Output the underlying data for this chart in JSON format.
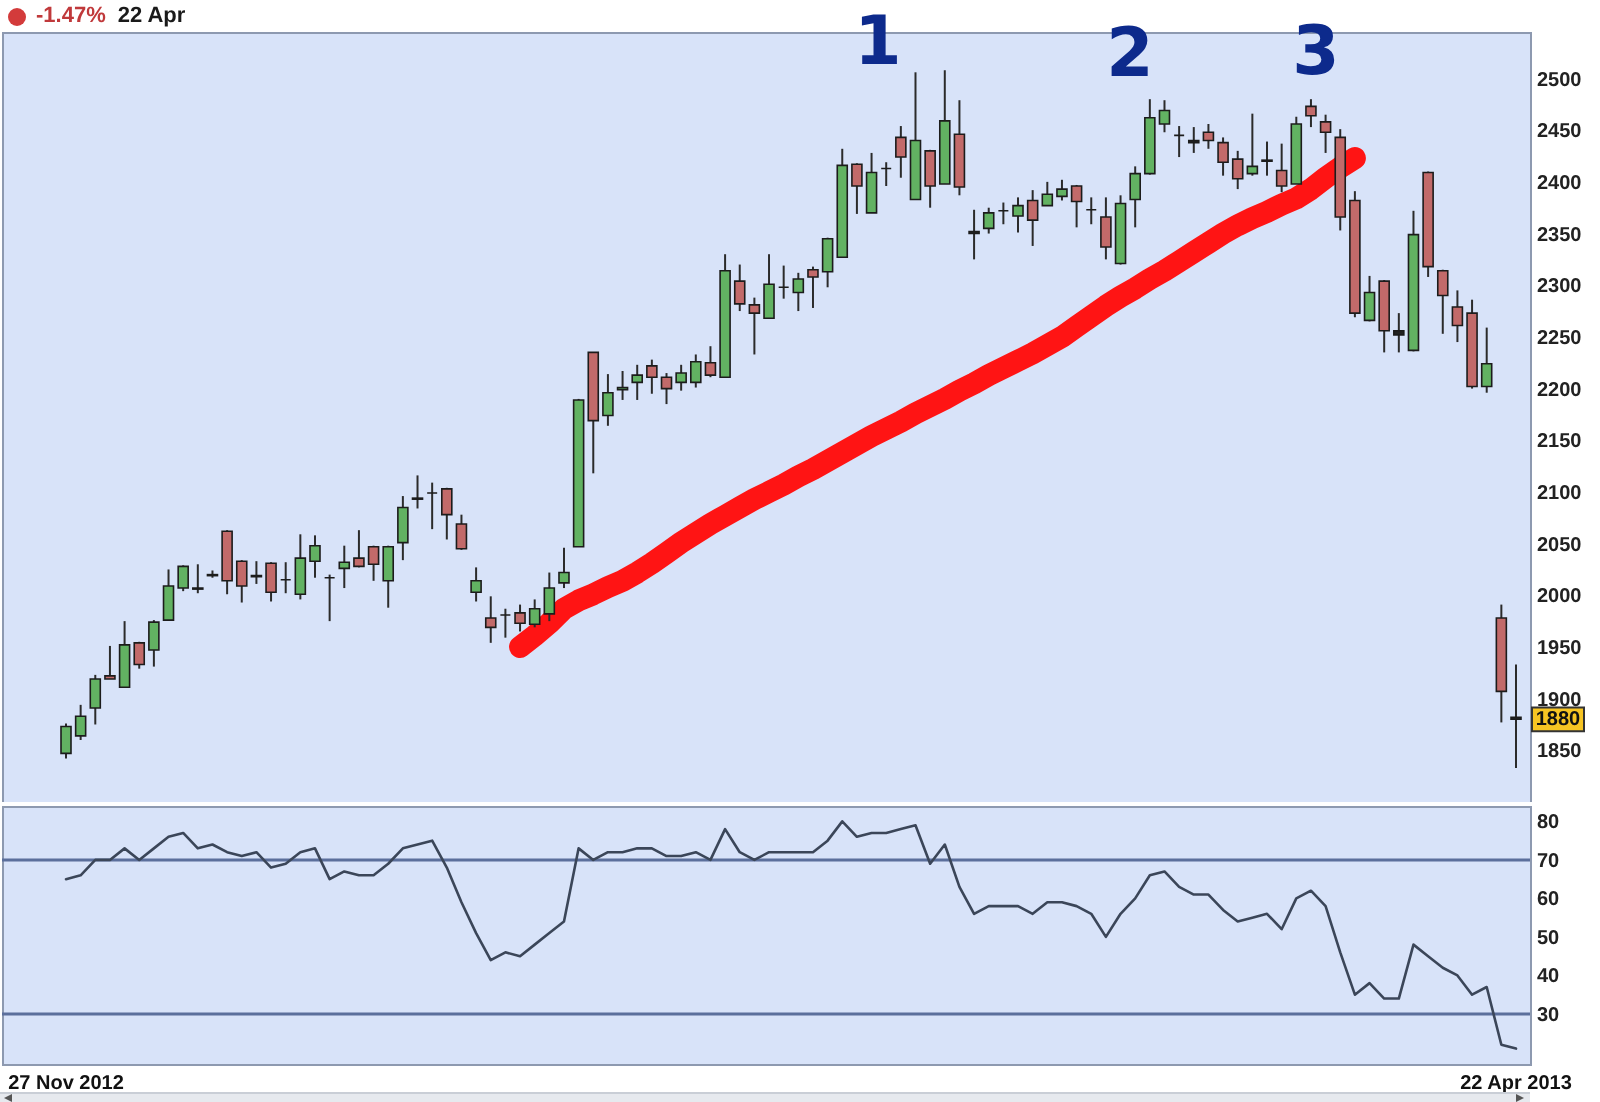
{
  "chart_data": [
    {
      "type": "candlestick",
      "title": "-1.47%",
      "subtitle": "22 Apr",
      "categories": [
        null,
        null,
        null,
        null,
        null,
        null,
        null,
        null,
        null,
        null,
        null,
        null,
        null,
        null,
        null,
        null,
        null,
        null,
        null,
        null,
        null,
        null,
        null,
        null,
        null,
        null,
        null,
        null,
        null,
        null,
        null,
        null,
        null,
        null,
        null,
        null,
        null,
        null,
        null,
        null,
        null,
        null,
        null,
        null,
        null,
        null,
        null,
        null,
        null,
        null,
        null,
        null,
        null,
        null,
        null,
        null,
        null,
        null,
        null,
        null,
        null,
        null,
        null,
        null,
        null,
        null,
        null,
        null,
        null,
        null,
        null,
        null,
        null,
        null,
        null,
        null,
        null,
        null,
        null,
        null,
        null,
        null,
        null,
        null,
        null,
        null,
        null,
        null,
        null,
        null,
        null,
        null,
        null,
        null,
        null,
        null,
        null,
        null,
        null,
        null
      ],
      "ohlc": [
        [
          1847,
          1876,
          1842,
          1873
        ],
        [
          1864,
          1894,
          1860,
          1883
        ],
        [
          1891,
          1923,
          1875,
          1919
        ],
        [
          1922,
          1951,
          1919,
          1919
        ],
        [
          1911,
          1975,
          1911,
          1952
        ],
        [
          1954,
          1955,
          1929,
          1933
        ],
        [
          1947,
          1976,
          1931,
          1974
        ],
        [
          1976,
          2025,
          1976,
          2009
        ],
        [
          2007,
          2029,
          2004,
          2028
        ],
        [
          2007,
          2030,
          2002,
          2006
        ],
        [
          2019,
          2024,
          2017,
          2020
        ],
        [
          2062,
          2063,
          2001,
          2014
        ],
        [
          2033,
          2034,
          1993,
          2009
        ],
        [
          2019,
          2033,
          2011,
          2018
        ],
        [
          2031,
          2032,
          1994,
          2003
        ],
        [
          2015,
          2032,
          2002,
          2015
        ],
        [
          2001,
          2059,
          1996,
          2036
        ],
        [
          2033,
          2058,
          2017,
          2048
        ],
        [
          2017,
          2020,
          1975,
          2017
        ],
        [
          2026,
          2048,
          2007,
          2032
        ],
        [
          2036,
          2063,
          2027,
          2028
        ],
        [
          2047,
          2048,
          2014,
          2030
        ],
        [
          2014,
          2048,
          1988,
          2047
        ],
        [
          2051,
          2096,
          2034,
          2085
        ],
        [
          2093,
          2116,
          2084,
          2094
        ],
        [
          2099,
          2109,
          2064,
          2099
        ],
        [
          2103,
          2104,
          2054,
          2078
        ],
        [
          2069,
          2078,
          2044,
          2045
        ],
        [
          2003,
          2027,
          1994,
          2014
        ],
        [
          1978,
          1999,
          1954,
          1969
        ],
        [
          1981,
          1987,
          1959,
          1981
        ],
        [
          1983,
          1991,
          1965,
          1973
        ],
        [
          1972,
          1996,
          1969,
          1987
        ],
        [
          1982,
          2022,
          1975,
          2007
        ],
        [
          2012,
          2046,
          2007,
          2022
        ],
        [
          2047,
          2190,
          2047,
          2189
        ],
        [
          2235,
          2235,
          2118,
          2169
        ],
        [
          2174,
          2214,
          2164,
          2196
        ],
        [
          2199,
          2217,
          2189,
          2201
        ],
        [
          2206,
          2223,
          2189,
          2213
        ],
        [
          2222,
          2228,
          2195,
          2211
        ],
        [
          2211,
          2215,
          2185,
          2200
        ],
        [
          2206,
          2223,
          2198,
          2215
        ],
        [
          2206,
          2233,
          2201,
          2226
        ],
        [
          2225,
          2241,
          2211,
          2213
        ],
        [
          2211,
          2330,
          2211,
          2314
        ],
        [
          2304,
          2320,
          2275,
          2282
        ],
        [
          2281,
          2288,
          2233,
          2273
        ],
        [
          2268,
          2330,
          2268,
          2301
        ],
        [
          2298,
          2319,
          2287,
          2298
        ],
        [
          2293,
          2312,
          2275,
          2306
        ],
        [
          2315,
          2318,
          2278,
          2308
        ],
        [
          2313,
          2346,
          2298,
          2345
        ],
        [
          2327,
          2432,
          2327,
          2416
        ],
        [
          2417,
          2418,
          2369,
          2396
        ],
        [
          2370,
          2428,
          2370,
          2409
        ],
        [
          2413,
          2419,
          2396,
          2413
        ],
        [
          2443,
          2454,
          2404,
          2424
        ],
        [
          2383,
          2506,
          2383,
          2440
        ],
        [
          2430,
          2431,
          2375,
          2396
        ],
        [
          2398,
          2508,
          2398,
          2459
        ],
        [
          2446,
          2479,
          2387,
          2395
        ],
        [
          2350,
          2373,
          2325,
          2352
        ],
        [
          2355,
          2375,
          2350,
          2370
        ],
        [
          2372,
          2380,
          2359,
          2372
        ],
        [
          2367,
          2385,
          2351,
          2377
        ],
        [
          2382,
          2392,
          2338,
          2363
        ],
        [
          2377,
          2400,
          2377,
          2388
        ],
        [
          2386,
          2402,
          2382,
          2393
        ],
        [
          2396,
          2397,
          2356,
          2381
        ],
        [
          2373,
          2385,
          2359,
          2373
        ],
        [
          2366,
          2385,
          2325,
          2337
        ],
        [
          2321,
          2387,
          2320,
          2379
        ],
        [
          2383,
          2415,
          2356,
          2408
        ],
        [
          2408,
          2480,
          2407,
          2462
        ],
        [
          2456,
          2479,
          2448,
          2469
        ],
        [
          2445,
          2454,
          2424,
          2445
        ],
        [
          2440,
          2453,
          2428,
          2438
        ],
        [
          2448,
          2456,
          2432,
          2440
        ],
        [
          2438,
          2443,
          2406,
          2419
        ],
        [
          2422,
          2430,
          2393,
          2403
        ],
        [
          2408,
          2466,
          2406,
          2415
        ],
        [
          2421,
          2439,
          2406,
          2420
        ],
        [
          2411,
          2437,
          2390,
          2396
        ],
        [
          2398,
          2463,
          2398,
          2456
        ],
        [
          2473,
          2480,
          2453,
          2464
        ],
        [
          2458,
          2465,
          2428,
          2448
        ],
        [
          2443,
          2451,
          2353,
          2366
        ],
        [
          2382,
          2391,
          2269,
          2273
        ],
        [
          2266,
          2309,
          2265,
          2293
        ],
        [
          2304,
          2305,
          2235,
          2256
        ],
        [
          2256,
          2273,
          2235,
          2252
        ],
        [
          2237,
          2372,
          2236,
          2349
        ],
        [
          2409,
          2410,
          2308,
          2318
        ],
        [
          2314,
          2315,
          2253,
          2290
        ],
        [
          2279,
          2295,
          2245,
          2261
        ],
        [
          2273,
          2286,
          2200,
          2202
        ],
        [
          2202,
          2259,
          2196,
          2224
        ],
        [
          1978,
          1991,
          1877,
          1907
        ],
        [
          1882,
          1933,
          1833,
          1880
        ]
      ],
      "colors": [
        "#62b262",
        "#62b262",
        "#62b262",
        "#c26a6a",
        "#62b262",
        "#c26a6a",
        "#62b262",
        "#62b262",
        "#62b262",
        "#222222",
        "#222222",
        "#c26a6a",
        "#c26a6a",
        "#222222",
        "#c26a6a",
        "#222222",
        "#62b262",
        "#62b262",
        "#222222",
        "#62b262",
        "#c26a6a",
        "#c26a6a",
        "#62b262",
        "#62b262",
        "#222222",
        "#222222",
        "#c26a6a",
        "#c26a6a",
        "#62b262",
        "#c26a6a",
        "#222222",
        "#c26a6a",
        "#62b262",
        "#62b262",
        "#62b262",
        "#62b262",
        "#c26a6a",
        "#62b262",
        "#62b262",
        "#62b262",
        "#c26a6a",
        "#c26a6a",
        "#62b262",
        "#62b262",
        "#c26a6a",
        "#62b262",
        "#c26a6a",
        "#c26a6a",
        "#62b262",
        "#222222",
        "#62b262",
        "#c26a6a",
        "#62b262",
        "#62b262",
        "#c26a6a",
        "#62b262",
        "#222222",
        "#c26a6a",
        "#62b262",
        "#c26a6a",
        "#62b262",
        "#c26a6a",
        "#222222",
        "#62b262",
        "#222222",
        "#62b262",
        "#c26a6a",
        "#62b262",
        "#62b262",
        "#c26a6a",
        "#222222",
        "#c26a6a",
        "#62b262",
        "#62b262",
        "#62b262",
        "#62b262",
        "#222222",
        "#222222",
        "#c26a6a",
        "#c26a6a",
        "#c26a6a",
        "#62b262",
        "#222222",
        "#c26a6a",
        "#62b262",
        "#c26a6a",
        "#c26a6a",
        "#c26a6a",
        "#c26a6a",
        "#62b262",
        "#c26a6a",
        "#222222",
        "#62b262",
        "#c26a6a",
        "#c26a6a",
        "#c26a6a",
        "#c26a6a",
        "#62b262",
        "#c26a6a",
        "#222222"
      ],
      "series": [
        {
          "type": "line",
          "color": "#ff1414",
          "values": [
            null,
            null,
            null,
            null,
            null,
            null,
            null,
            null,
            null,
            null,
            null,
            null,
            null,
            null,
            null,
            null,
            null,
            null,
            null,
            null,
            null,
            null,
            null,
            null,
            null,
            null,
            null,
            null,
            null,
            null,
            null,
            1950,
            1961,
            1973,
            1987,
            1995,
            2001,
            2008,
            2014,
            2022,
            2031,
            2041,
            2051,
            2060,
            2069,
            2077,
            2085,
            2093,
            2100,
            2107,
            2115,
            2122,
            2130,
            2138,
            2146,
            2154,
            2161,
            2168,
            2176,
            2183,
            2190,
            2198,
            2205,
            2213,
            2220,
            2227,
            2234,
            2242,
            2250,
            2260,
            2270,
            2280,
            2289,
            2297,
            2306,
            2314,
            2323,
            2332,
            2341,
            2350,
            2358,
            2365,
            2371,
            2378,
            2384,
            2393,
            2404,
            2414,
            2423,
            null,
            null,
            null,
            null,
            null,
            null,
            null,
            null,
            null,
            null,
            null
          ]
        }
      ],
      "ylim": [
        1800,
        2545
      ],
      "yticks": [
        1850,
        1900,
        1950,
        2000,
        2050,
        2100,
        2150,
        2200,
        2250,
        2300,
        2350,
        2400,
        2450,
        2500
      ],
      "annotations": [
        "1",
        "2",
        "3",
        "1880"
      ]
    },
    {
      "type": "line",
      "categories": [
        "27 Nov 2012",
        null,
        null,
        null,
        null,
        null,
        null,
        null,
        null,
        null,
        null,
        null,
        null,
        null,
        null,
        null,
        null,
        null,
        null,
        null,
        null,
        null,
        null,
        null,
        null,
        null,
        null,
        null,
        null,
        null,
        null,
        null,
        null,
        null,
        null,
        null,
        null,
        null,
        null,
        null,
        null,
        null,
        null,
        null,
        null,
        null,
        null,
        null,
        null,
        null,
        null,
        null,
        null,
        null,
        null,
        null,
        null,
        null,
        null,
        null,
        null,
        null,
        null,
        null,
        null,
        null,
        null,
        null,
        null,
        null,
        null,
        null,
        null,
        null,
        null,
        null,
        null,
        null,
        null,
        null,
        null,
        null,
        null,
        null,
        null,
        null,
        null,
        null,
        null,
        null,
        null,
        null,
        null,
        null,
        null,
        null,
        null,
        null,
        null,
        "22 Apr 2013"
      ],
      "values": [
        65,
        66,
        70,
        70,
        73,
        70,
        73,
        76,
        77,
        73,
        74,
        72,
        71,
        72,
        68,
        69,
        72,
        73,
        65,
        67,
        66,
        66,
        69,
        73,
        74,
        75,
        68,
        59,
        51,
        44,
        46,
        45,
        48,
        51,
        54,
        73,
        70,
        72,
        72,
        73,
        73,
        71,
        71,
        72,
        70,
        78,
        72,
        70,
        72,
        72,
        72,
        72,
        75,
        80,
        76,
        77,
        77,
        78,
        79,
        69,
        74,
        63,
        56,
        58,
        58,
        58,
        56,
        59,
        59,
        58,
        56,
        50,
        56,
        60,
        66,
        67,
        63,
        61,
        61,
        57,
        54,
        55,
        56,
        52,
        60,
        62,
        58,
        46,
        35,
        38,
        34,
        34,
        48,
        45,
        42,
        40,
        35,
        37,
        22,
        21
      ],
      "color": "#3b4659",
      "ylim": [
        17,
        84
      ],
      "yticks": [
        30,
        40,
        50,
        60,
        70,
        80
      ],
      "ref_lines": [
        {
          "axis": "y",
          "value": 70,
          "color": "#5b6f9c"
        },
        {
          "axis": "y",
          "value": 30,
          "color": "#5b6f9c"
        }
      ]
    }
  ]
}
